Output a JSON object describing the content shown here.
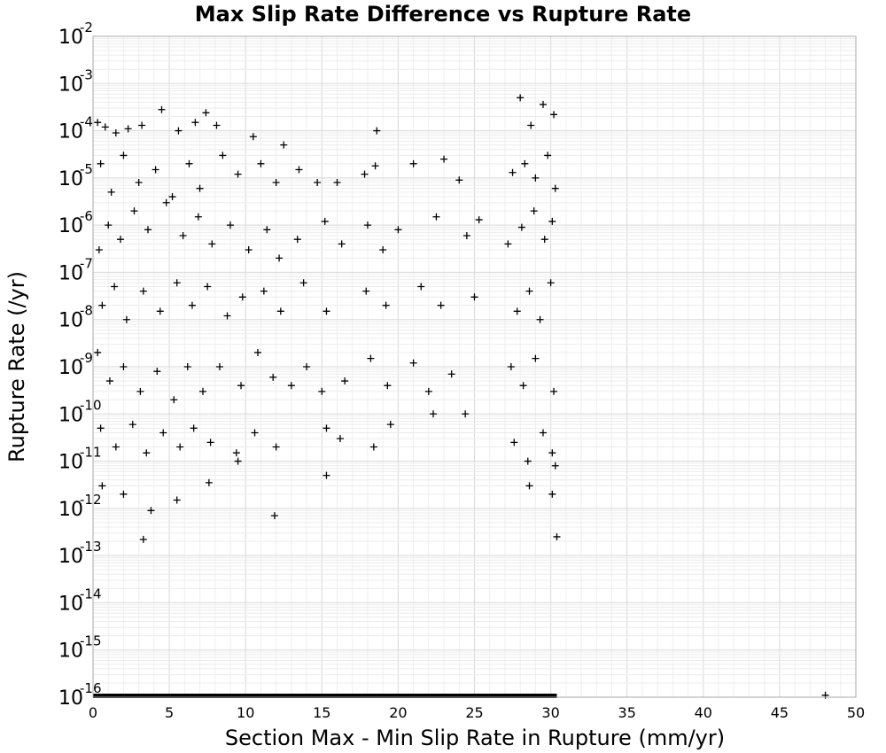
{
  "chart_data": {
    "type": "scatter",
    "title": "Max Slip Rate Difference vs Rupture Rate",
    "xlabel": "Section Max - Min Slip Rate in Rupture (mm/yr)",
    "ylabel": "Rupture Rate (/yr)",
    "xlim": [
      0,
      50
    ],
    "ylim": [
      1e-16,
      0.01
    ],
    "yscale": "log",
    "grid": true,
    "marker": "plus",
    "marker_color": "#000000",
    "x_ticks": [
      "0",
      "5",
      "10",
      "15",
      "20",
      "25",
      "30",
      "35",
      "40",
      "45",
      "50"
    ],
    "x_tick_values": [
      0,
      5,
      10,
      15,
      20,
      25,
      30,
      35,
      40,
      45,
      50
    ],
    "y_ticks": [
      {
        "base": "10",
        "exp": "-2",
        "value": 0.01
      },
      {
        "base": "10",
        "exp": "-3",
        "value": 0.001
      },
      {
        "base": "10",
        "exp": "-4",
        "value": 0.0001
      },
      {
        "base": "10",
        "exp": "-5",
        "value": 1e-05
      },
      {
        "base": "10",
        "exp": "-6",
        "value": 1e-06
      },
      {
        "base": "10",
        "exp": "-7",
        "value": 1e-07
      },
      {
        "base": "10",
        "exp": "-8",
        "value": 1e-08
      },
      {
        "base": "10",
        "exp": "-9",
        "value": 1e-09
      },
      {
        "base": "10",
        "exp": "-10",
        "value": 1e-10
      },
      {
        "base": "10",
        "exp": "-11",
        "value": 1e-11
      },
      {
        "base": "10",
        "exp": "-12",
        "value": 1e-12
      },
      {
        "base": "10",
        "exp": "-13",
        "value": 1e-13
      },
      {
        "base": "10",
        "exp": "-14",
        "value": 1e-14
      },
      {
        "base": "10",
        "exp": "-15",
        "value": 1e-15
      },
      {
        "base": "10",
        "exp": "-16",
        "value": 1e-16
      }
    ],
    "floor_band": {
      "x_range": [
        0,
        30.4
      ],
      "y": 1e-16
    },
    "points": [
      [
        0.3,
        0.00015
      ],
      [
        0.8,
        0.00012
      ],
      [
        1.5,
        9e-05
      ],
      [
        2.3,
        0.00011
      ],
      [
        3.2,
        0.00013
      ],
      [
        4.5,
        0.00028
      ],
      [
        5.6,
        0.0001
      ],
      [
        6.7,
        0.00015
      ],
      [
        7.4,
        0.00024
      ],
      [
        8.1,
        0.00013
      ],
      [
        10.5,
        7.5e-05
      ],
      [
        12.5,
        5e-05
      ],
      [
        18.6,
        0.0001
      ],
      [
        28.0,
        0.0005
      ],
      [
        29.5,
        0.00036
      ],
      [
        30.2,
        0.00022
      ],
      [
        28.7,
        0.00013
      ],
      [
        0.5,
        2e-05
      ],
      [
        1.2,
        5e-06
      ],
      [
        2.0,
        3e-05
      ],
      [
        3.0,
        8e-06
      ],
      [
        4.1,
        1.5e-05
      ],
      [
        5.2,
        4e-06
      ],
      [
        6.3,
        2e-05
      ],
      [
        7.0,
        6e-06
      ],
      [
        8.5,
        3e-05
      ],
      [
        9.5,
        1.2e-05
      ],
      [
        11.0,
        2e-05
      ],
      [
        12.0,
        8e-06
      ],
      [
        13.5,
        1.5e-05
      ],
      [
        14.7,
        8e-06
      ],
      [
        16.0,
        8e-06
      ],
      [
        17.8,
        1.2e-05
      ],
      [
        18.5,
        1.8e-05
      ],
      [
        21.0,
        2e-05
      ],
      [
        23.0,
        2.5e-05
      ],
      [
        24.0,
        9e-06
      ],
      [
        27.5,
        1.3e-05
      ],
      [
        28.3,
        2e-05
      ],
      [
        29.0,
        1e-05
      ],
      [
        29.8,
        3e-05
      ],
      [
        30.3,
        6e-06
      ],
      [
        0.4,
        3e-07
      ],
      [
        1.0,
        1e-06
      ],
      [
        1.8,
        5e-07
      ],
      [
        2.7,
        2e-06
      ],
      [
        3.6,
        8e-07
      ],
      [
        4.8,
        3e-06
      ],
      [
        5.9,
        6e-07
      ],
      [
        6.9,
        1.5e-06
      ],
      [
        7.8,
        4e-07
      ],
      [
        9.0,
        1e-06
      ],
      [
        10.2,
        3e-07
      ],
      [
        11.4,
        8e-07
      ],
      [
        12.2,
        2e-07
      ],
      [
        13.4,
        5e-07
      ],
      [
        15.2,
        1.2e-06
      ],
      [
        16.3,
        4e-07
      ],
      [
        18.0,
        1e-06
      ],
      [
        19.0,
        3e-07
      ],
      [
        20.0,
        8e-07
      ],
      [
        22.5,
        1.5e-06
      ],
      [
        24.5,
        6e-07
      ],
      [
        25.3,
        1.3e-06
      ],
      [
        27.2,
        4e-07
      ],
      [
        28.1,
        9e-07
      ],
      [
        28.9,
        2e-06
      ],
      [
        29.6,
        5e-07
      ],
      [
        30.1,
        1.2e-06
      ],
      [
        0.6,
        2e-08
      ],
      [
        1.4,
        5e-08
      ],
      [
        2.2,
        1e-08
      ],
      [
        3.3,
        4e-08
      ],
      [
        4.4,
        1.5e-08
      ],
      [
        5.5,
        6e-08
      ],
      [
        6.5,
        2e-08
      ],
      [
        7.5,
        5e-08
      ],
      [
        8.8,
        1.2e-08
      ],
      [
        9.8,
        3e-08
      ],
      [
        11.2,
        4e-08
      ],
      [
        12.3,
        1.5e-08
      ],
      [
        13.8,
        6e-08
      ],
      [
        15.3,
        1.5e-08
      ],
      [
        17.9,
        4e-08
      ],
      [
        19.2,
        2e-08
      ],
      [
        21.5,
        5e-08
      ],
      [
        22.8,
        2e-08
      ],
      [
        25.0,
        3e-08
      ],
      [
        27.8,
        1.5e-08
      ],
      [
        28.6,
        4e-08
      ],
      [
        29.3,
        1e-08
      ],
      [
        30.0,
        6e-08
      ],
      [
        0.3,
        2e-09
      ],
      [
        1.1,
        5e-10
      ],
      [
        2.0,
        1e-09
      ],
      [
        3.1,
        3e-10
      ],
      [
        4.2,
        8e-10
      ],
      [
        5.3,
        2e-10
      ],
      [
        6.2,
        1e-09
      ],
      [
        7.2,
        3e-10
      ],
      [
        8.3,
        1e-09
      ],
      [
        9.7,
        4e-10
      ],
      [
        10.8,
        2e-09
      ],
      [
        11.8,
        6e-10
      ],
      [
        13.0,
        4e-10
      ],
      [
        14.0,
        1e-09
      ],
      [
        15.0,
        3e-10
      ],
      [
        16.5,
        5e-10
      ],
      [
        18.2,
        1.5e-09
      ],
      [
        19.3,
        4e-10
      ],
      [
        21.0,
        1.2e-09
      ],
      [
        22.0,
        3e-10
      ],
      [
        23.5,
        7e-10
      ],
      [
        27.4,
        1e-09
      ],
      [
        28.2,
        4e-10
      ],
      [
        29.0,
        1.5e-09
      ],
      [
        30.2,
        3e-10
      ],
      [
        0.5,
        5e-11
      ],
      [
        1.5,
        2e-11
      ],
      [
        2.6,
        6e-11
      ],
      [
        3.5,
        1.5e-11
      ],
      [
        4.6,
        4e-11
      ],
      [
        5.7,
        2e-11
      ],
      [
        6.6,
        5e-11
      ],
      [
        7.7,
        2.5e-11
      ],
      [
        9.4,
        1.5e-11
      ],
      [
        10.6,
        4e-11
      ],
      [
        12.0,
        2e-11
      ],
      [
        15.3,
        5e-11
      ],
      [
        16.2,
        3e-11
      ],
      [
        18.4,
        2e-11
      ],
      [
        19.5,
        6e-11
      ],
      [
        22.3,
        1e-10
      ],
      [
        24.4,
        1e-10
      ],
      [
        27.6,
        2.5e-11
      ],
      [
        28.5,
        1e-11
      ],
      [
        29.5,
        4e-11
      ],
      [
        30.1,
        1.5e-11
      ],
      [
        30.3,
        8e-12
      ],
      [
        0.6,
        3e-12
      ],
      [
        2.0,
        2e-12
      ],
      [
        3.8,
        9e-13
      ],
      [
        5.5,
        1.5e-12
      ],
      [
        7.6,
        3.5e-12
      ],
      [
        9.5,
        1e-11
      ],
      [
        11.9,
        7e-13
      ],
      [
        15.3,
        5e-12
      ],
      [
        3.3,
        2.2e-13
      ],
      [
        30.4,
        2.5e-13
      ],
      [
        28.6,
        3e-12
      ],
      [
        30.1,
        2e-12
      ],
      [
        48.0,
        1.1e-16
      ]
    ]
  }
}
